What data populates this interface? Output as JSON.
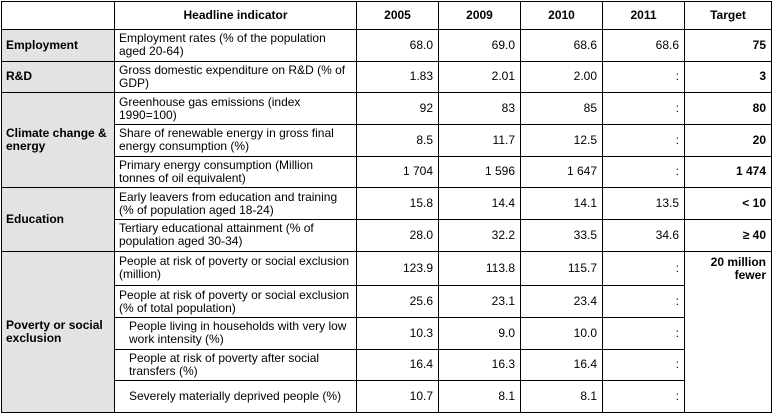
{
  "header": {
    "area": "",
    "indicator": "Headline indicator",
    "y2005": "2005",
    "y2009": "2009",
    "y2010": "2010",
    "y2011": "2011",
    "target": "Target"
  },
  "areas": {
    "employment": "Employment",
    "rd": "R&D",
    "climate": "Climate change & energy",
    "education": "Education",
    "poverty": "Poverty or social exclusion"
  },
  "rows": [
    {
      "indicator": "Employment rates (% of the population aged 20-64)",
      "y2005": "68.0",
      "y2009": "69.0",
      "y2010": "68.6",
      "y2011": "68.6",
      "target": "75"
    },
    {
      "indicator": "Gross domestic expenditure on R&D (% of GDP)",
      "y2005": "1.83",
      "y2009": "2.01",
      "y2010": "2.00",
      "y2011": ":",
      "target": "3"
    },
    {
      "indicator": "Greenhouse gas emissions (index 1990=100)",
      "y2005": "92",
      "y2009": "83",
      "y2010": "85",
      "y2011": ":",
      "target": "80"
    },
    {
      "indicator": "Share of renewable energy in gross final energy consumption (%)",
      "y2005": "8.5",
      "y2009": "11.7",
      "y2010": "12.5",
      "y2011": ":",
      "target": "20"
    },
    {
      "indicator": "Primary energy consumption (Million tonnes of oil equivalent)",
      "y2005": "1 704",
      "y2009": "1 596",
      "y2010": "1 647",
      "y2011": ":",
      "target": "1 474"
    },
    {
      "indicator": "Early leavers from education and training (% of population aged 18-24)",
      "y2005": "15.8",
      "y2009": "14.4",
      "y2010": "14.1",
      "y2011": "13.5",
      "target": "< 10"
    },
    {
      "indicator": "Tertiary educational attainment (% of population aged 30-34)",
      "y2005": "28.0",
      "y2009": "32.2",
      "y2010": "33.5",
      "y2011": "34.6",
      "target": "≥ 40"
    },
    {
      "indicator": "People at risk of poverty or social exclusion (million)",
      "y2005": "123.9",
      "y2009": "113.8",
      "y2010": "115.7",
      "y2011": ":",
      "target": "20 million fewer"
    },
    {
      "indicator": "People at risk of poverty or social exclusion (% of total population)",
      "y2005": "25.6",
      "y2009": "23.1",
      "y2010": "23.4",
      "y2011": ":",
      "target": ""
    },
    {
      "indicator": "People living in households with very low work intensity (%)",
      "y2005": "10.3",
      "y2009": "9.0",
      "y2010": "10.0",
      "y2011": ":",
      "target": ""
    },
    {
      "indicator": "People at risk of poverty after social transfers (%)",
      "y2005": "16.4",
      "y2009": "16.3",
      "y2010": "16.4",
      "y2011": ":",
      "target": ""
    },
    {
      "indicator": "Severely materially deprived people (%)",
      "y2005": "10.7",
      "y2009": "8.1",
      "y2010": "8.1",
      "y2011": ":",
      "target": ""
    }
  ]
}
